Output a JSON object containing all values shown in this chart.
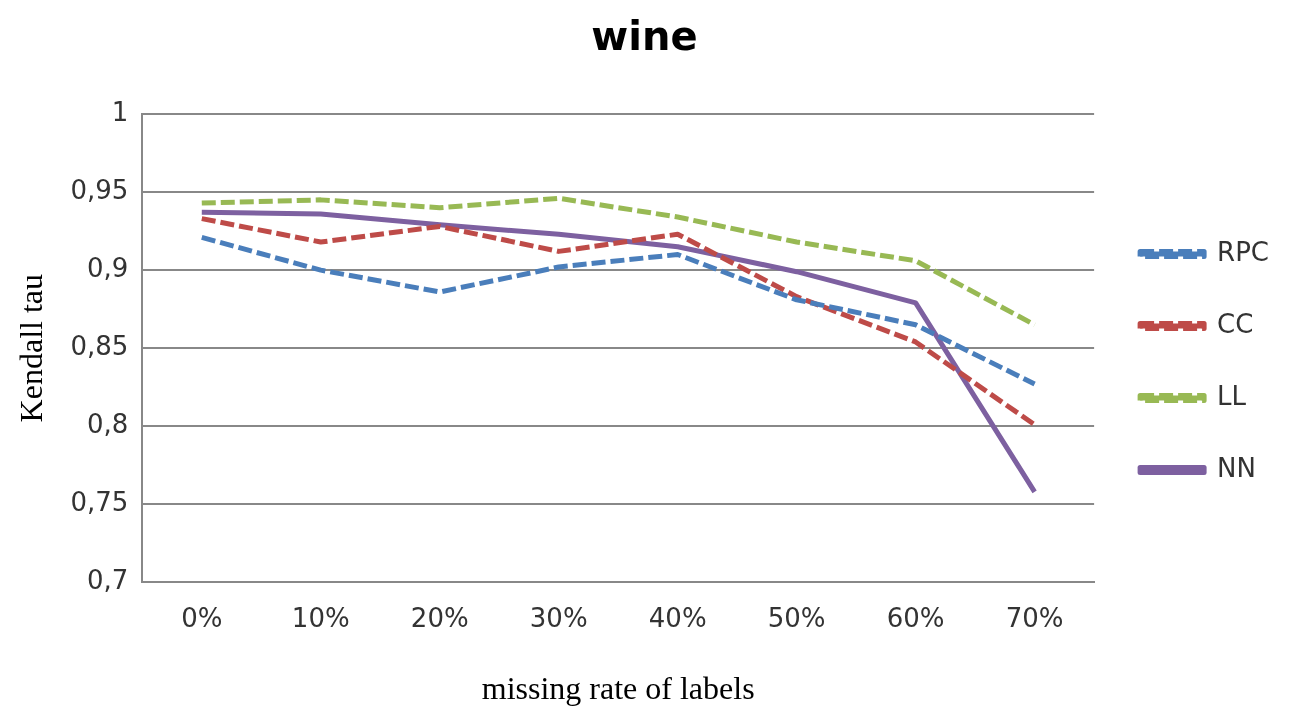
{
  "chart_data": {
    "type": "line",
    "title": "wine",
    "xlabel": "missing rate of labels",
    "ylabel": "Kendall tau",
    "categories": [
      "0%",
      "10%",
      "20%",
      "30%",
      "40%",
      "50%",
      "60%",
      "70%"
    ],
    "ylim": [
      0.7,
      1
    ],
    "yticks": [
      {
        "value": 0.7,
        "label": "0,7"
      },
      {
        "value": 0.75,
        "label": "0,75"
      },
      {
        "value": 0.8,
        "label": "0,8"
      },
      {
        "value": 0.85,
        "label": "0,85"
      },
      {
        "value": 0.9,
        "label": "0,9"
      },
      {
        "value": 0.95,
        "label": "0,95"
      },
      {
        "value": 1,
        "label": "1"
      }
    ],
    "grid": "y",
    "legend": "right",
    "marker": "none",
    "series": [
      {
        "name": "RPC",
        "color": "#4a7ebb",
        "line_style": "dashed",
        "values": [
          0.921,
          0.9,
          0.886,
          0.902,
          0.91,
          0.881,
          0.865,
          0.827
        ]
      },
      {
        "name": "CC",
        "color": "#be4b48",
        "line_style": "dashed",
        "values": [
          0.933,
          0.918,
          0.928,
          0.912,
          0.923,
          0.883,
          0.854,
          0.801
        ]
      },
      {
        "name": "LL",
        "color": "#98b954",
        "line_style": "dashed",
        "values": [
          0.943,
          0.945,
          0.94,
          0.946,
          0.934,
          0.918,
          0.906,
          0.865
        ]
      },
      {
        "name": "NN",
        "color": "#7d60a0",
        "line_style": "solid",
        "values": [
          0.937,
          0.936,
          0.929,
          0.923,
          0.915,
          0.899,
          0.879,
          0.758
        ]
      }
    ]
  }
}
